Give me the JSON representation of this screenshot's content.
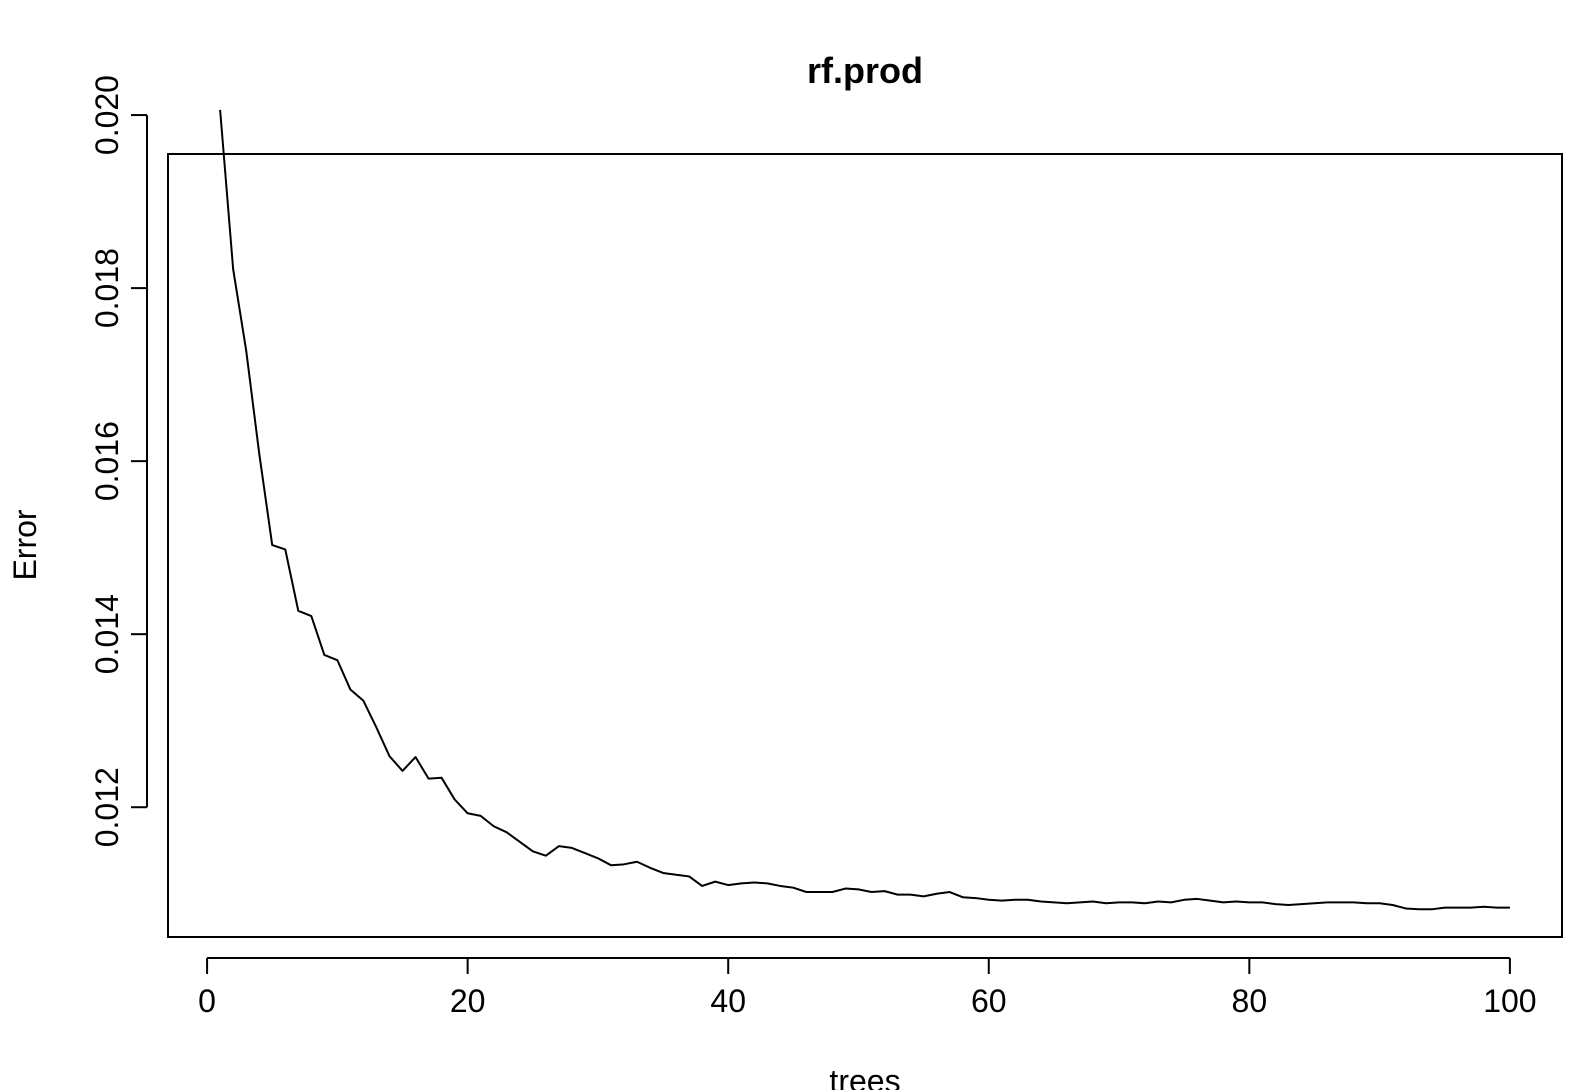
{
  "chart_data": {
    "type": "line",
    "title": "rf.prod",
    "xlabel": "trees",
    "ylabel": "Error",
    "xlim": [
      -3,
      104
    ],
    "ylim": [
      0.01955,
      0.0105
    ],
    "xticks": [
      0,
      20,
      40,
      60,
      80,
      100
    ],
    "xtick_labels": [
      "0",
      "20",
      "40",
      "60",
      "80",
      "100"
    ],
    "yticks": [
      0.012,
      0.014,
      0.016,
      0.018,
      0.02
    ],
    "ytick_labels": [
      "0.012",
      "0.014",
      "0.016",
      "0.018",
      "0.020"
    ],
    "grid": false,
    "legend": "none",
    "line_color": "#000000",
    "series": [
      {
        "x": [
          1,
          2,
          3,
          4,
          5,
          6,
          7,
          8,
          9,
          10,
          11,
          12,
          13,
          14,
          15,
          16,
          17,
          18,
          19,
          20,
          21,
          22,
          23,
          24,
          25,
          26,
          27,
          28,
          29,
          30,
          31,
          32,
          33,
          34,
          35,
          36,
          37,
          38,
          39,
          40,
          41,
          42,
          43,
          44,
          45,
          46,
          47,
          48,
          49,
          50,
          51,
          52,
          53,
          54,
          55,
          56,
          57,
          58,
          59,
          60,
          61,
          62,
          63,
          64,
          65,
          66,
          67,
          68,
          69,
          70,
          71,
          72,
          73,
          74,
          75,
          76,
          77,
          78,
          79,
          80,
          81,
          82,
          83,
          84,
          85,
          86,
          87,
          88,
          89,
          90,
          91,
          92,
          93,
          94,
          95,
          96,
          97,
          98,
          99,
          100
        ],
        "values": [
          0.02006,
          0.01822,
          0.01728,
          0.01609,
          0.01503,
          0.01498,
          0.01427,
          0.01421,
          0.01376,
          0.0137,
          0.01336,
          0.01323,
          0.01292,
          0.01259,
          0.01242,
          0.01258,
          0.01233,
          0.01234,
          0.01209,
          0.01193,
          0.0119,
          0.01178,
          0.01171,
          0.0116,
          0.01149,
          0.01144,
          0.01155,
          0.01153,
          0.01147,
          0.01141,
          0.01133,
          0.01134,
          0.01137,
          0.0113,
          0.01124,
          0.01122,
          0.0112,
          0.01109,
          0.01114,
          0.0111,
          0.01112,
          0.01113,
          0.01112,
          0.01109,
          0.01107,
          0.01102,
          0.01102,
          0.01102,
          0.01106,
          0.01105,
          0.01102,
          0.01103,
          0.01099,
          0.01099,
          0.01097,
          0.011,
          0.01102,
          0.01096,
          0.01095,
          0.01093,
          0.01092,
          0.01093,
          0.01093,
          0.01091,
          0.0109,
          0.01089,
          0.0109,
          0.01091,
          0.01089,
          0.0109,
          0.0109,
          0.01089,
          0.01091,
          0.0109,
          0.01093,
          0.01094,
          0.01092,
          0.0109,
          0.01091,
          0.0109,
          0.0109,
          0.01088,
          0.01087,
          0.01088,
          0.01089,
          0.0109,
          0.0109,
          0.0109,
          0.01089,
          0.01089,
          0.01087,
          0.01083,
          0.01082,
          0.01082,
          0.01084,
          0.01084,
          0.01084,
          0.01085,
          0.01084,
          0.01084
        ]
      }
    ]
  }
}
